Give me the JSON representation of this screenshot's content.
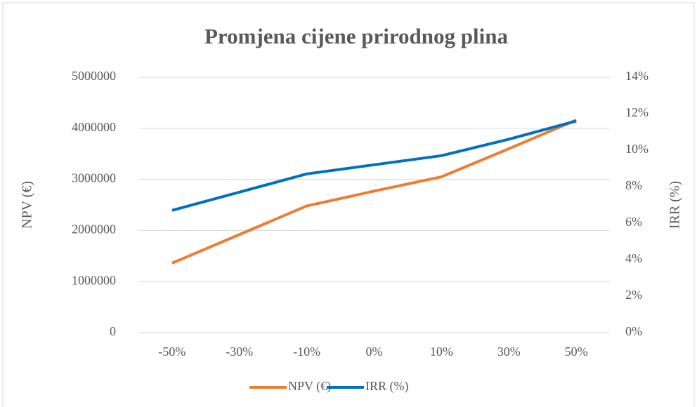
{
  "chart_data": {
    "type": "line",
    "title": "Promjena cijene prirodnog plina",
    "categories": [
      "-50%",
      "-30%",
      "-10%",
      "0%",
      "10%",
      "30%",
      "50%"
    ],
    "series": [
      {
        "name": "NPV (€)",
        "color": "#ed7d31",
        "values": [
          1360000,
          1920000,
          2480000,
          2770000,
          3050000,
          3600000,
          4160000
        ]
      },
      {
        "name": "IRR (%)",
        "color": "#0070c0",
        "axis": "y2",
        "values": [
          6.7,
          7.7,
          8.7,
          9.2,
          9.7,
          10.6,
          11.6
        ]
      }
    ],
    "ylabel": "NPV (€)",
    "y2label": "IRR (%)",
    "ylim": [
      0,
      5000000
    ],
    "yticks": [
      0,
      1000000,
      2000000,
      3000000,
      4000000,
      5000000
    ],
    "y2lim": [
      0,
      14
    ],
    "y2ticks": [
      {
        "value": 0,
        "label": "0%"
      },
      {
        "value": 2,
        "label": "2%"
      },
      {
        "value": 4,
        "label": "4%"
      },
      {
        "value": 6,
        "label": "6%"
      },
      {
        "value": 8,
        "label": "8%"
      },
      {
        "value": 10,
        "label": "10%"
      },
      {
        "value": 12,
        "label": "12%"
      },
      {
        "value": 14,
        "label": "14%"
      }
    ],
    "grid": true,
    "legend": "bottom"
  }
}
